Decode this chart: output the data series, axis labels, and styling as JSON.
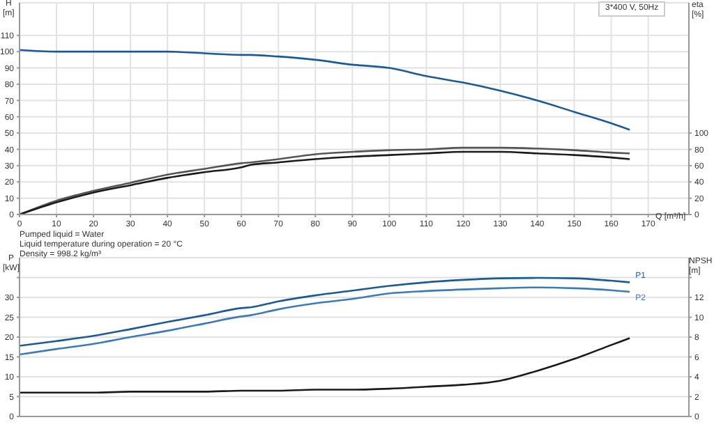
{
  "chart_data": [
    {
      "type": "line",
      "title": "3*400 V, 50Hz",
      "xlabel": "Q [m³/h]",
      "ylabel": "H [m]",
      "y2label": "eta [%]",
      "marker": "none",
      "grid": true,
      "annotations": [
        "Pumped liquid = Water",
        "Liquid temperature during operation = 20 °C",
        "Density = 998.2 kg/m³"
      ],
      "x": [
        0,
        10,
        20,
        30,
        40,
        50,
        60,
        62.5,
        70,
        80,
        90,
        100,
        110,
        120,
        130,
        140,
        150,
        160,
        165
      ],
      "xlim": [
        0,
        181
      ],
      "xticks": [
        0,
        10,
        20,
        30,
        40,
        50,
        60,
        70,
        80,
        90,
        100,
        110,
        120,
        130,
        140,
        150,
        160,
        170
      ],
      "ylim": [
        0,
        130
      ],
      "yticks": [
        0,
        10,
        20,
        30,
        40,
        50,
        60,
        70,
        80,
        90,
        100,
        110
      ],
      "y2lim": [
        0,
        260
      ],
      "y2ticks": [
        0,
        20,
        40,
        60,
        80,
        100
      ],
      "series": [
        {
          "color": "#1a5a96",
          "values": [
            101,
            100,
            100,
            100,
            100,
            99,
            98,
            98,
            97,
            95,
            92,
            90,
            85,
            81,
            76,
            70,
            63,
            56,
            52
          ]
        },
        {
          "color": "#555555",
          "axis": "y2",
          "values": [
            0,
            17,
            29,
            39,
            49,
            56,
            63,
            64,
            68,
            74,
            77,
            79,
            80,
            82,
            82,
            81,
            79,
            76,
            75
          ]
        },
        {
          "color": "#1a1a1a",
          "axis": "y2",
          "values": [
            0,
            15,
            27,
            36,
            45,
            52,
            58,
            61,
            64,
            68,
            71,
            73,
            75,
            77,
            77,
            75,
            73,
            70,
            68
          ]
        }
      ]
    },
    {
      "type": "line",
      "ylabel": "P [kW]",
      "y2label": "NPSH [m]",
      "marker": "none",
      "grid": true,
      "tick_labels": "y",
      "x": [
        0,
        10,
        20,
        30,
        40,
        50,
        60,
        62.5,
        70,
        80,
        90,
        100,
        110,
        120,
        130,
        140,
        150,
        160,
        165
      ],
      "xlim": [
        0,
        181
      ],
      "xticks": [
        0,
        10,
        20,
        30,
        40,
        50,
        60,
        70,
        80,
        90,
        100,
        110,
        120,
        130,
        140,
        150,
        160,
        170
      ],
      "ylim": [
        0,
        40
      ],
      "yticks": [
        0,
        5,
        10,
        15,
        20,
        25,
        30,
        {
          "value": 35,
          "label": null
        }
      ],
      "y2lim": [
        0,
        16
      ],
      "y2ticks": [
        0,
        2,
        4,
        6,
        8,
        10,
        12,
        {
          "value": 14,
          "label": null
        }
      ],
      "series": [
        {
          "name": "P1",
          "color": "#1a5a96",
          "values": [
            17.8,
            19,
            20.3,
            22,
            23.8,
            25.5,
            27.3,
            27.5,
            29,
            30.5,
            31.7,
            32.9,
            33.8,
            34.4,
            34.8,
            34.9,
            34.8,
            34.2,
            33.8
          ]
        },
        {
          "name": "P2",
          "color": "#3c7ab8",
          "values": [
            15.6,
            17,
            18.3,
            20,
            21.6,
            23.4,
            25.2,
            25.5,
            27,
            28.5,
            29.6,
            31,
            31.6,
            32,
            32.3,
            32.5,
            32.3,
            31.8,
            31.4
          ]
        },
        {
          "color": "#1a1a1a",
          "axis": "y2",
          "values": [
            2.4,
            2.4,
            2.4,
            2.5,
            2.5,
            2.5,
            2.6,
            2.6,
            2.6,
            2.7,
            2.7,
            2.8,
            3,
            3.2,
            3.6,
            4.6,
            5.8,
            7.2,
            7.9
          ]
        }
      ]
    }
  ]
}
